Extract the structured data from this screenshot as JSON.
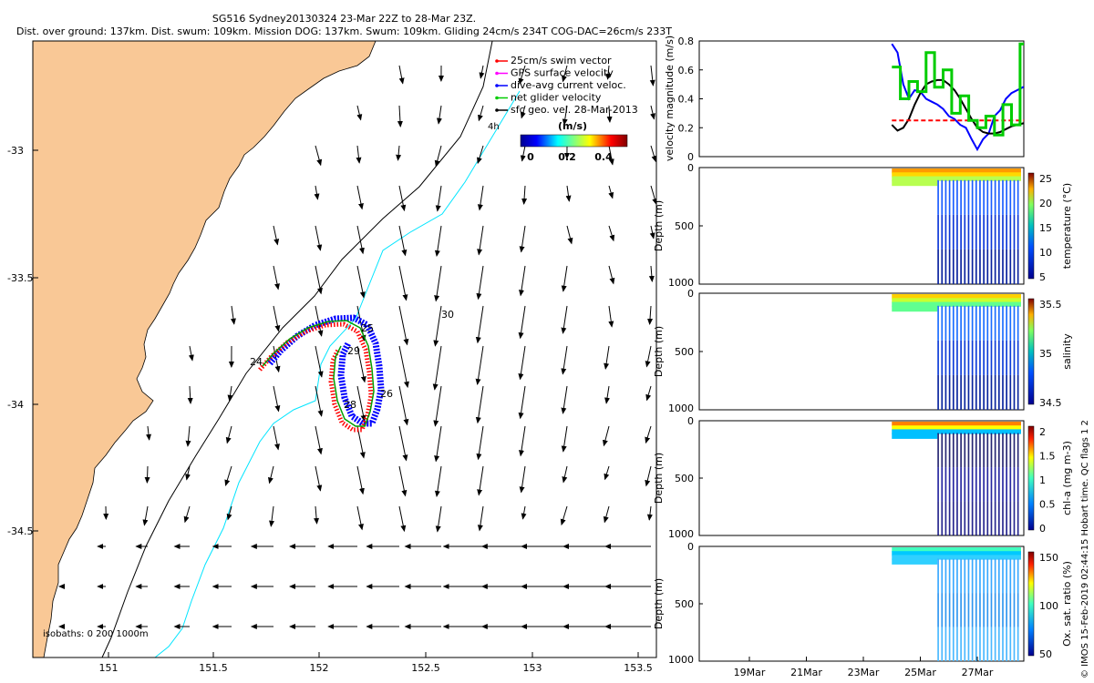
{
  "header": {
    "title_line1": "SG516 Sydney20130324 23-Mar 22Z to 28-Mar 23Z.",
    "title_line2": "Dist. over ground: 137km. Dist. swum: 109km. Mission DOG: 137km. Swum: 109km. Gliding 24cm/s 234T COG-DAC=26cm/s 233T"
  },
  "map": {
    "x_ticks": [
      "151",
      "151.5",
      "152",
      "152.5",
      "153",
      "153.5"
    ],
    "y_ticks": [
      "-33",
      "-33.5",
      "-34",
      "-34.5"
    ],
    "legend": [
      {
        "label": "25cm/s swim vector",
        "color": "#ff0000"
      },
      {
        "label": "GPS surface velocity",
        "color": "#ff00ff"
      },
      {
        "label": "dive-avg current veloc.",
        "color": "#0000ff"
      },
      {
        "label": "net glider velocity",
        "color": "#00cc00"
      },
      {
        "label": "sfc geo. vel. 28-Mar-2013",
        "color": "#000000"
      }
    ],
    "legend_marker": "4h",
    "colorbar_label": "(m/s)",
    "colorbar_ticks": [
      "0",
      "0.2",
      "0.4"
    ],
    "day_labels": [
      "24",
      "25",
      "26",
      "28",
      "29",
      "30"
    ],
    "isobaths_label": "isobaths: 0   200   1000m",
    "land_color": "#f9c896",
    "contour_200_color": "#000000",
    "contour_1000_color": "#00e5ff"
  },
  "chart_data": [
    {
      "type": "line",
      "title": "",
      "ylabel": "velocity magnitude (m/s)",
      "ylim": [
        0,
        0.8
      ],
      "y_ticks": [
        "0",
        "0.2",
        "0.4",
        "0.6",
        "0.8"
      ],
      "series": [
        {
          "color": "#0000ff",
          "x": [
            24.0,
            24.2,
            24.4,
            24.6,
            24.8,
            25.0,
            25.2,
            25.4,
            25.6,
            25.8,
            26.0,
            26.2,
            26.4,
            26.6,
            26.8,
            27.0,
            27.2,
            27.4,
            27.6,
            27.8,
            28.0,
            28.2,
            28.4,
            28.6,
            28.8
          ],
          "values": [
            0.78,
            0.72,
            0.5,
            0.4,
            0.46,
            0.45,
            0.4,
            0.38,
            0.36,
            0.33,
            0.28,
            0.26,
            0.22,
            0.2,
            0.12,
            0.05,
            0.12,
            0.16,
            0.28,
            0.32,
            0.4,
            0.44,
            0.46,
            0.48,
            0.48
          ]
        },
        {
          "color": "#000000",
          "x": [
            24.0,
            24.2,
            24.4,
            24.6,
            24.8,
            25.0,
            25.2,
            25.4,
            25.6,
            25.8,
            26.0,
            26.2,
            26.4,
            26.6,
            26.8,
            27.0,
            27.2,
            27.4,
            27.6,
            27.8,
            28.0,
            28.2,
            28.4,
            28.6,
            28.8
          ],
          "values": [
            0.22,
            0.18,
            0.2,
            0.26,
            0.36,
            0.44,
            0.5,
            0.52,
            0.53,
            0.53,
            0.5,
            0.46,
            0.4,
            0.33,
            0.26,
            0.2,
            0.17,
            0.16,
            0.16,
            0.17,
            0.19,
            0.21,
            0.22,
            0.23,
            0.24
          ]
        },
        {
          "color": "#ff0000",
          "x": [
            24.0,
            28.8
          ],
          "values": [
            0.25,
            0.25
          ]
        },
        {
          "color": "#00cc00",
          "x": [
            24.0,
            24.3,
            24.6,
            24.9,
            25.2,
            25.5,
            25.8,
            26.1,
            26.4,
            26.7,
            27.0,
            27.3,
            27.6,
            27.9,
            28.2,
            28.5,
            28.8
          ],
          "values": [
            0.62,
            0.4,
            0.52,
            0.45,
            0.72,
            0.48,
            0.6,
            0.3,
            0.42,
            0.25,
            0.2,
            0.28,
            0.15,
            0.36,
            0.22,
            0.78,
            0.3
          ]
        }
      ]
    },
    {
      "type": "heatmap",
      "ylabel": "Depth (m)",
      "y_ticks": [
        "0",
        "500",
        "1000"
      ],
      "cbar_label": "temperature (°C)",
      "cbar_ticks": [
        "5",
        "10",
        "15",
        "20",
        "25"
      ],
      "ylim": [
        1000,
        0
      ]
    },
    {
      "type": "heatmap",
      "ylabel": "Depth (m)",
      "y_ticks": [
        "0",
        "500",
        "1000"
      ],
      "cbar_label": "salinity",
      "cbar_ticks": [
        "34.5",
        "35",
        "35.5"
      ],
      "ylim": [
        1000,
        0
      ]
    },
    {
      "type": "heatmap",
      "ylabel": "Depth (m)",
      "y_ticks": [
        "0",
        "500",
        "1000"
      ],
      "cbar_label": "chl-a (mg m-3)",
      "cbar_ticks": [
        "0",
        "0.5",
        "1",
        "1.5",
        "2"
      ],
      "ylim": [
        1000,
        0
      ]
    },
    {
      "type": "heatmap",
      "ylabel": "Depth (m)",
      "y_ticks": [
        "0",
        "500",
        "1000"
      ],
      "cbar_label": "Ox. sat. ratio (%)",
      "cbar_ticks": [
        "50",
        "100",
        "150"
      ],
      "ylim": [
        1000,
        0
      ]
    }
  ],
  "time_axis": [
    "19Mar",
    "21Mar",
    "23Mar",
    "25Mar",
    "27Mar"
  ],
  "credit": "© IMOS 15-Feb-2019 02:44:15 Hobart time. QC flags 1  2"
}
